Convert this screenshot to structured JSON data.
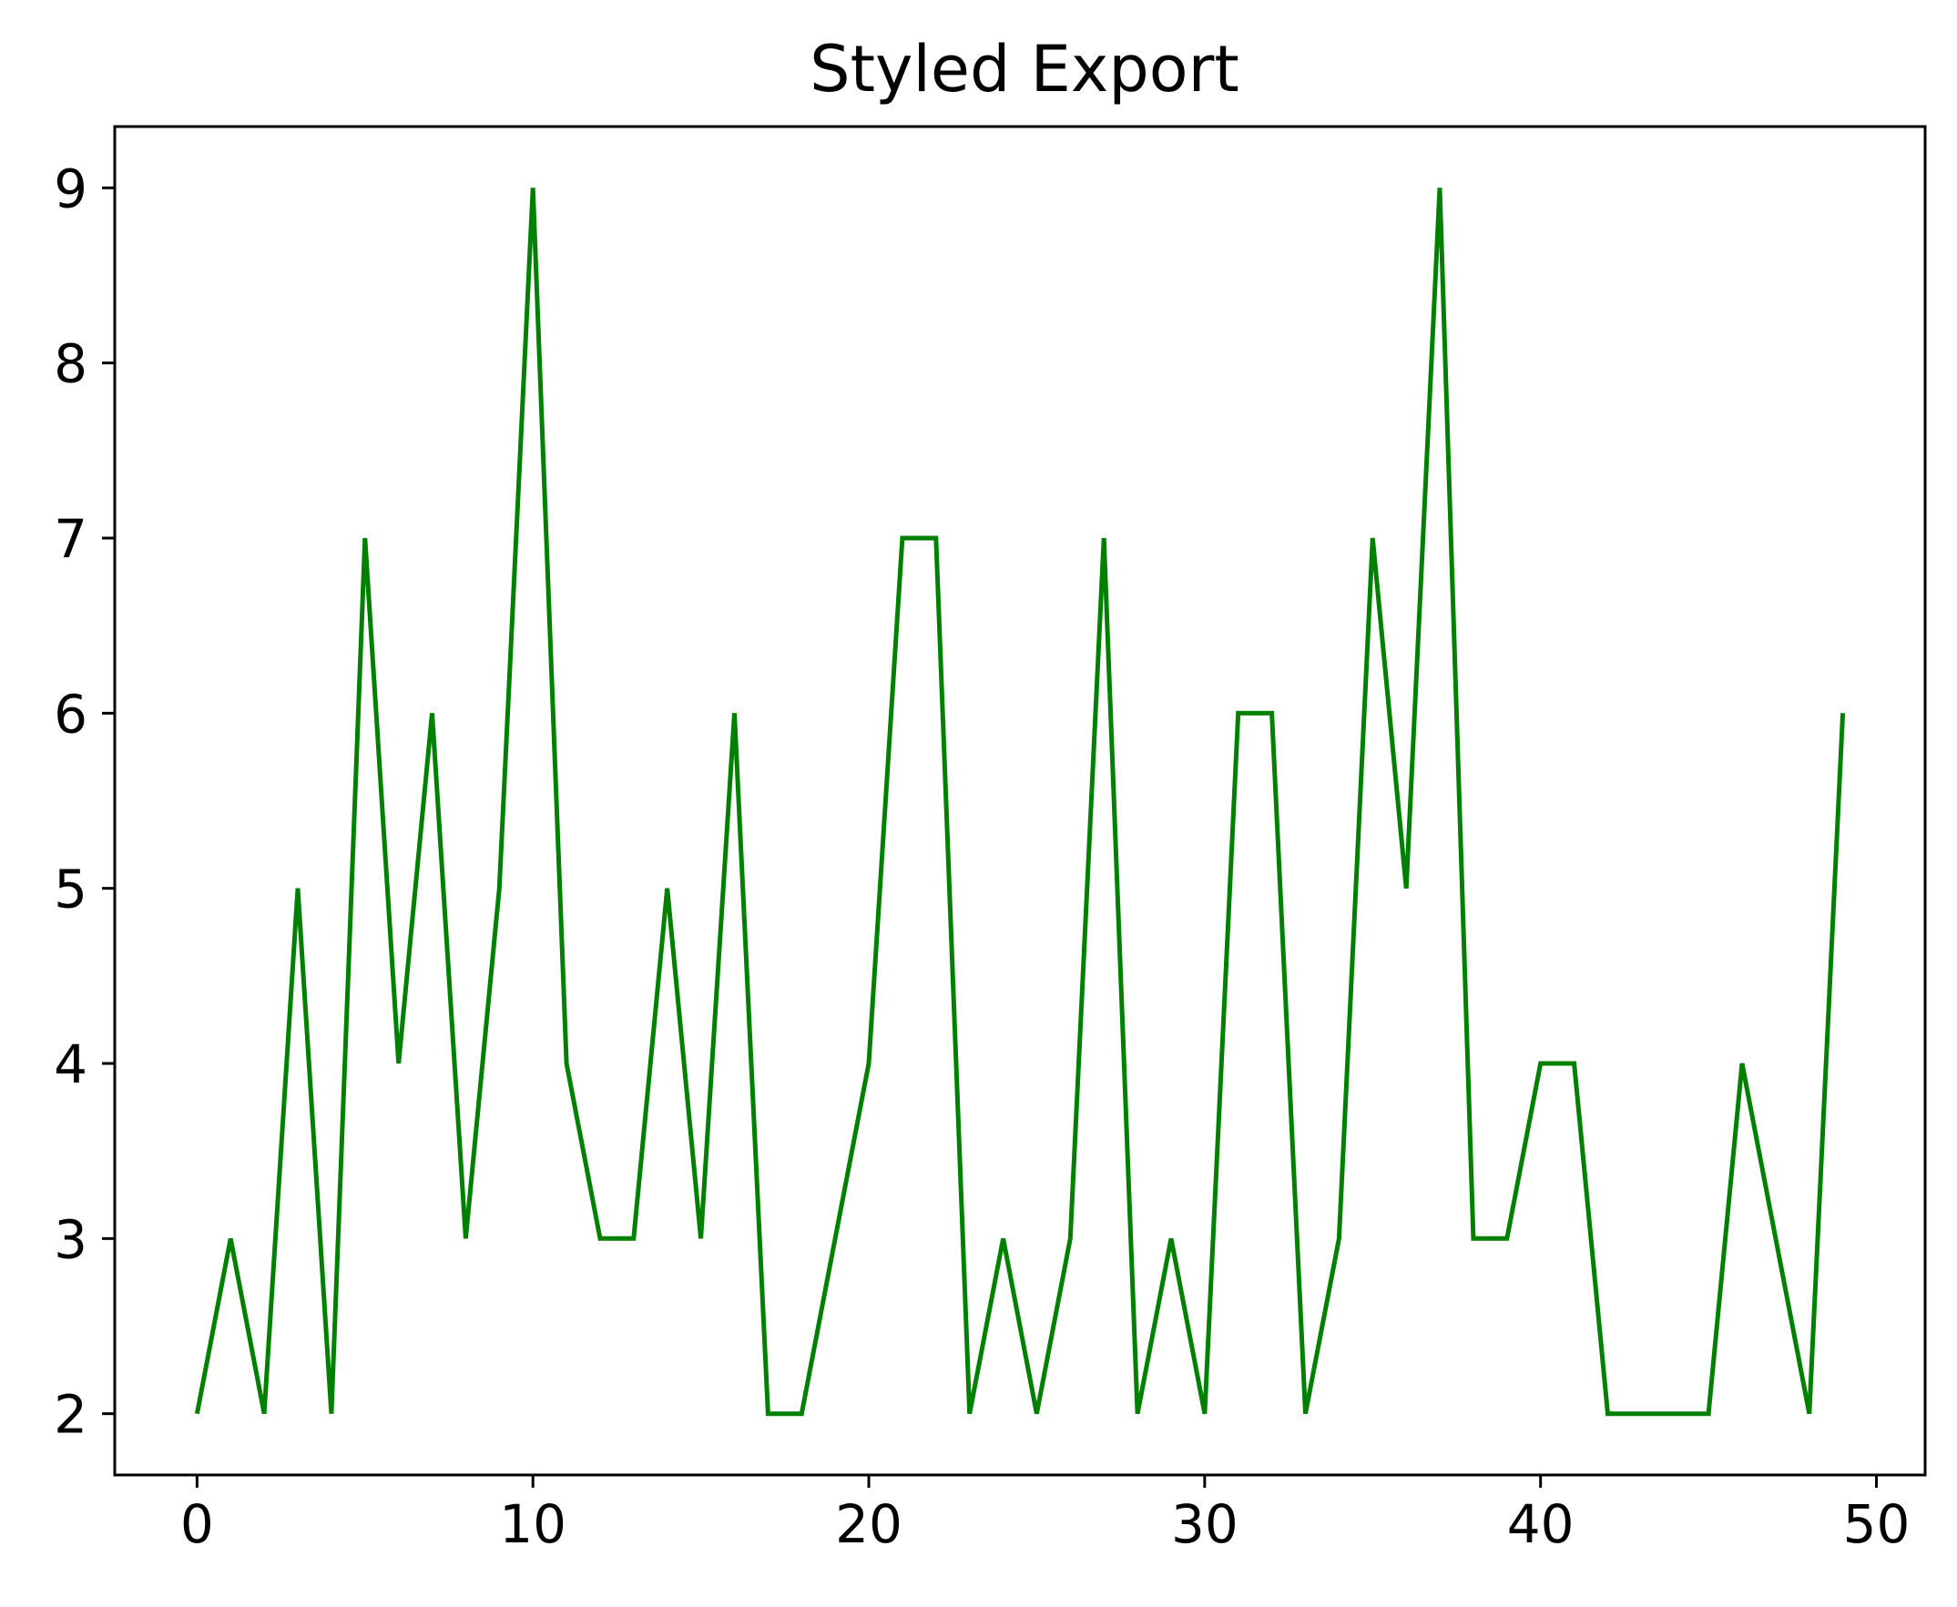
{
  "chart_data": {
    "type": "line",
    "title": "Styled Export",
    "xlabel": "",
    "ylabel": "",
    "xlim": [
      -2.45,
      51.45
    ],
    "ylim": [
      1.65,
      9.35
    ],
    "xticks": [
      0,
      10,
      20,
      30,
      40,
      50
    ],
    "yticks": [
      2,
      3,
      4,
      5,
      6,
      7,
      8,
      9
    ],
    "grid": false,
    "color": "#008000",
    "series": [
      {
        "x": [
          0,
          1,
          2,
          3,
          4,
          5,
          6,
          7,
          8,
          9,
          10,
          11,
          12,
          13,
          14,
          15,
          16,
          17,
          18,
          19,
          20,
          21,
          22,
          23,
          24,
          25,
          26,
          27,
          28,
          29,
          30,
          31,
          32,
          33,
          34,
          35,
          36,
          37,
          38,
          39,
          40,
          41,
          42,
          43,
          44,
          45,
          46,
          47,
          48,
          49
        ],
        "values": [
          2,
          3,
          2,
          5,
          2,
          7,
          4,
          6,
          3,
          5,
          9,
          4,
          3,
          3,
          5,
          3,
          6,
          2,
          2,
          3,
          4,
          7,
          7,
          2,
          3,
          2,
          3,
          7,
          2,
          3,
          2,
          6,
          6,
          2,
          3,
          7,
          5,
          9,
          3,
          3,
          4,
          4,
          2,
          2,
          2,
          2,
          4,
          3,
          2,
          6
        ]
      }
    ]
  }
}
